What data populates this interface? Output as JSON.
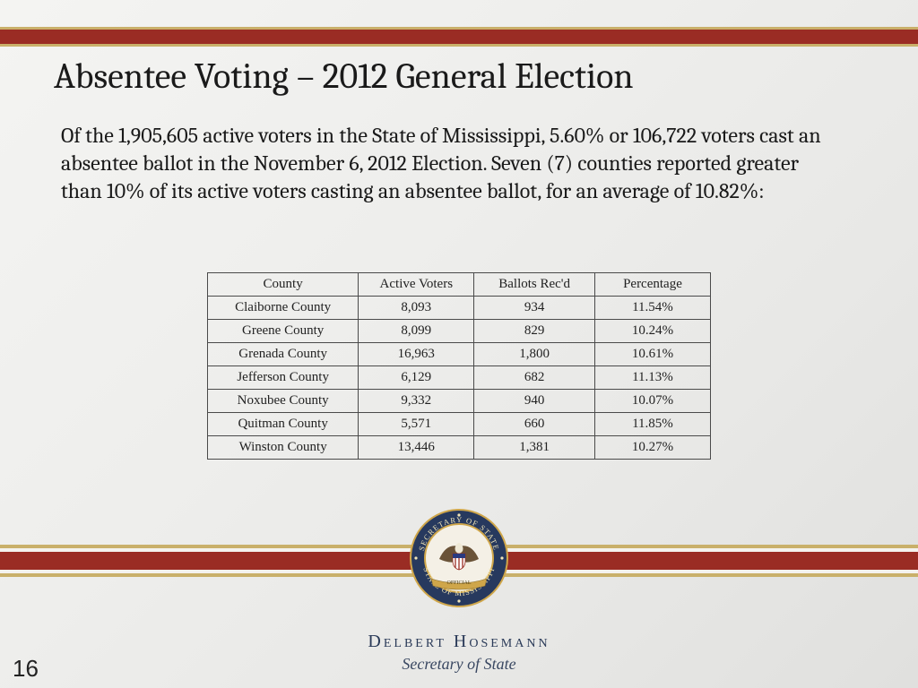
{
  "colors": {
    "red_band": "#9a2c24",
    "gold_line": "#c9b06a",
    "seal_navy": "#27395e",
    "seal_gold": "#cfa64a",
    "background": "#eeeeec"
  },
  "title": "Absentee Voting – 2012 General Election",
  "body": "Of the 1,905,605 active voters in the State of Mississippi, 5.60% or 106,722 voters cast an absentee ballot in the November 6, 2012 Election.  Seven (7) counties reported greater than 10% of its active voters casting an absentee ballot, for an average of 10.82%:",
  "table": {
    "columns": [
      "County",
      "Active Voters",
      "Ballots Rec'd",
      "Percentage"
    ],
    "rows": [
      [
        "Claiborne County",
        "8,093",
        "934",
        "11.54%"
      ],
      [
        "Greene County",
        "8,099",
        "829",
        "10.24%"
      ],
      [
        "Grenada County",
        "16,963",
        "1,800",
        "10.61%"
      ],
      [
        "Jefferson County",
        "6,129",
        "682",
        "11.13%"
      ],
      [
        "Noxubee County",
        "9,332",
        "940",
        "10.07%"
      ],
      [
        "Quitman County",
        "5,571",
        "660",
        "11.85%"
      ],
      [
        "Winston County",
        "13,446",
        "1,381",
        "10.27%"
      ]
    ],
    "col_widths_pct": [
      30,
      23,
      24,
      23
    ]
  },
  "seal": {
    "outer_text_top": "SECRETARY OF STATE",
    "outer_text_bottom": "STATE OF MISSISSIPPI",
    "inner_label": "OFFICIAL"
  },
  "footer": {
    "name": "Delbert Hosemann",
    "title": "Secretary of State"
  },
  "page_number": "16"
}
